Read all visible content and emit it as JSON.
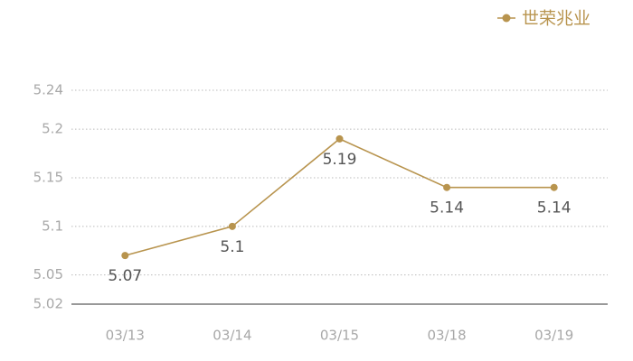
{
  "chart_data": {
    "type": "line",
    "categories": [
      "03/13",
      "03/14",
      "03/15",
      "03/18",
      "03/19"
    ],
    "series": [
      {
        "name": "世荣兆业",
        "color": "#b8944e",
        "values": [
          5.07,
          5.1,
          5.19,
          5.14,
          5.14
        ]
      }
    ],
    "ylim": [
      5.02,
      5.24
    ],
    "yticks": [
      5.02,
      5.05,
      5.1,
      5.15,
      5.2,
      5.24
    ],
    "grid": true,
    "legend": "top-right",
    "data_labels": true
  }
}
